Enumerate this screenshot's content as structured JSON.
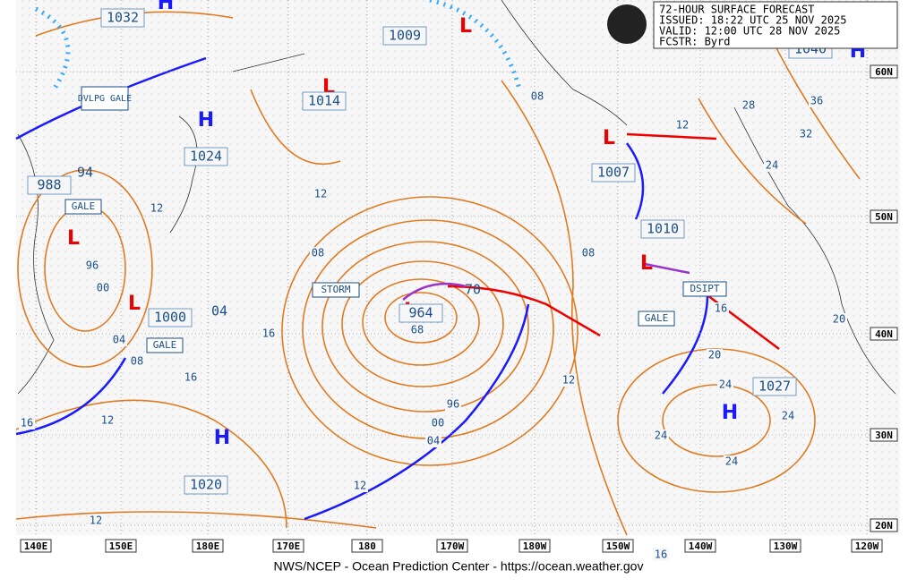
{
  "header": {
    "title": "72-HOUR SURFACE FORECAST",
    "issued": "ISSUED: 18:22 UTC 25 NOV 2025",
    "valid": "VALID:  12:00 UTC 28 NOV 2025",
    "forecaster": "FCSTR:  Byrd"
  },
  "footer": "NWS/NCEP - Ocean Prediction Center - https://ocean.weather.gov",
  "longitude_labels": [
    "140E",
    "150E",
    "180E",
    "170E",
    "180",
    "170W",
    "180W",
    "150W",
    "140W",
    "130W",
    "120W"
  ],
  "latitude_labels": [
    "60N",
    "50N",
    "40N",
    "30N",
    "20N"
  ],
  "pressure_centers": [
    {
      "symbol": "H",
      "pressure": "1032"
    },
    {
      "symbol": "H",
      "pressure": "1024"
    },
    {
      "symbol": "H",
      "pressure": "1020"
    },
    {
      "symbol": "H",
      "pressure": "1027"
    },
    {
      "symbol": "H",
      "pressure": "1040"
    },
    {
      "symbol": "L",
      "pressure": "1009"
    },
    {
      "symbol": "L",
      "pressure": "1014"
    },
    {
      "symbol": "L",
      "pressure": "1007"
    },
    {
      "symbol": "L",
      "pressure": "1010"
    },
    {
      "symbol": "L",
      "pressure": "964"
    },
    {
      "symbol": "L",
      "pressure": "1000"
    },
    {
      "symbol": "L",
      "pressure": "988"
    }
  ],
  "other_pressures": [
    "94",
    "70",
    "04"
  ],
  "isobar_labels": [
    "08",
    "12",
    "28",
    "36",
    "32",
    "24",
    "12",
    "12",
    "08",
    "08",
    "96",
    "00",
    "16",
    "04",
    "08",
    "16",
    "12",
    "20",
    "16",
    "20",
    "24",
    "24",
    "24",
    "24",
    "16",
    "12",
    "12",
    "12",
    "16",
    "68",
    "96",
    "00",
    "04"
  ],
  "annotations": [
    "STORM",
    "GALE",
    "GALE",
    "GALE",
    "DVLPG GALE",
    "DSIPT"
  ]
}
